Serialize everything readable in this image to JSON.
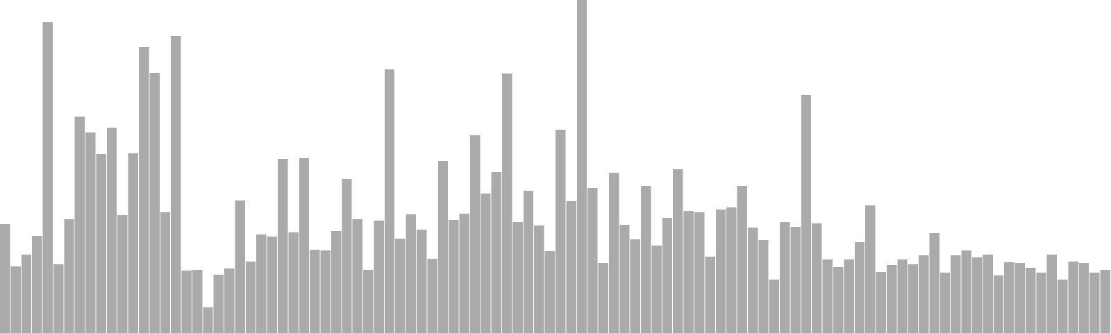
{
  "chart_data": {
    "type": "bar",
    "title": "",
    "xlabel": "",
    "ylabel": "",
    "bar_color": "#aaaaaa",
    "background_color": "#ffffff",
    "grid": false,
    "legend": "none",
    "ylim": [
      0,
      480
    ],
    "values": [
      157,
      96,
      113,
      140,
      448,
      99,
      164,
      312,
      289,
      258,
      296,
      170,
      259,
      412,
      375,
      174,
      428,
      90,
      91,
      37,
      84,
      93,
      191,
      103,
      142,
      139,
      251,
      145,
      252,
      120,
      119,
      147,
      222,
      164,
      91,
      162,
      380,
      136,
      171,
      149,
      107,
      248,
      163,
      172,
      285,
      201,
      232,
      374,
      160,
      205,
      155,
      118,
      293,
      190,
      480,
      209,
      101,
      231,
      156,
      135,
      212,
      126,
      166,
      236,
      176,
      174,
      110,
      178,
      181,
      212,
      152,
      134,
      77,
      160,
      153,
      343,
      158,
      106,
      95,
      106,
      131,
      184,
      88,
      98,
      106,
      99,
      112,
      144,
      87,
      112,
      119,
      109,
      113,
      83,
      102,
      101,
      94,
      87,
      113,
      77,
      103,
      101,
      87,
      91
    ]
  }
}
